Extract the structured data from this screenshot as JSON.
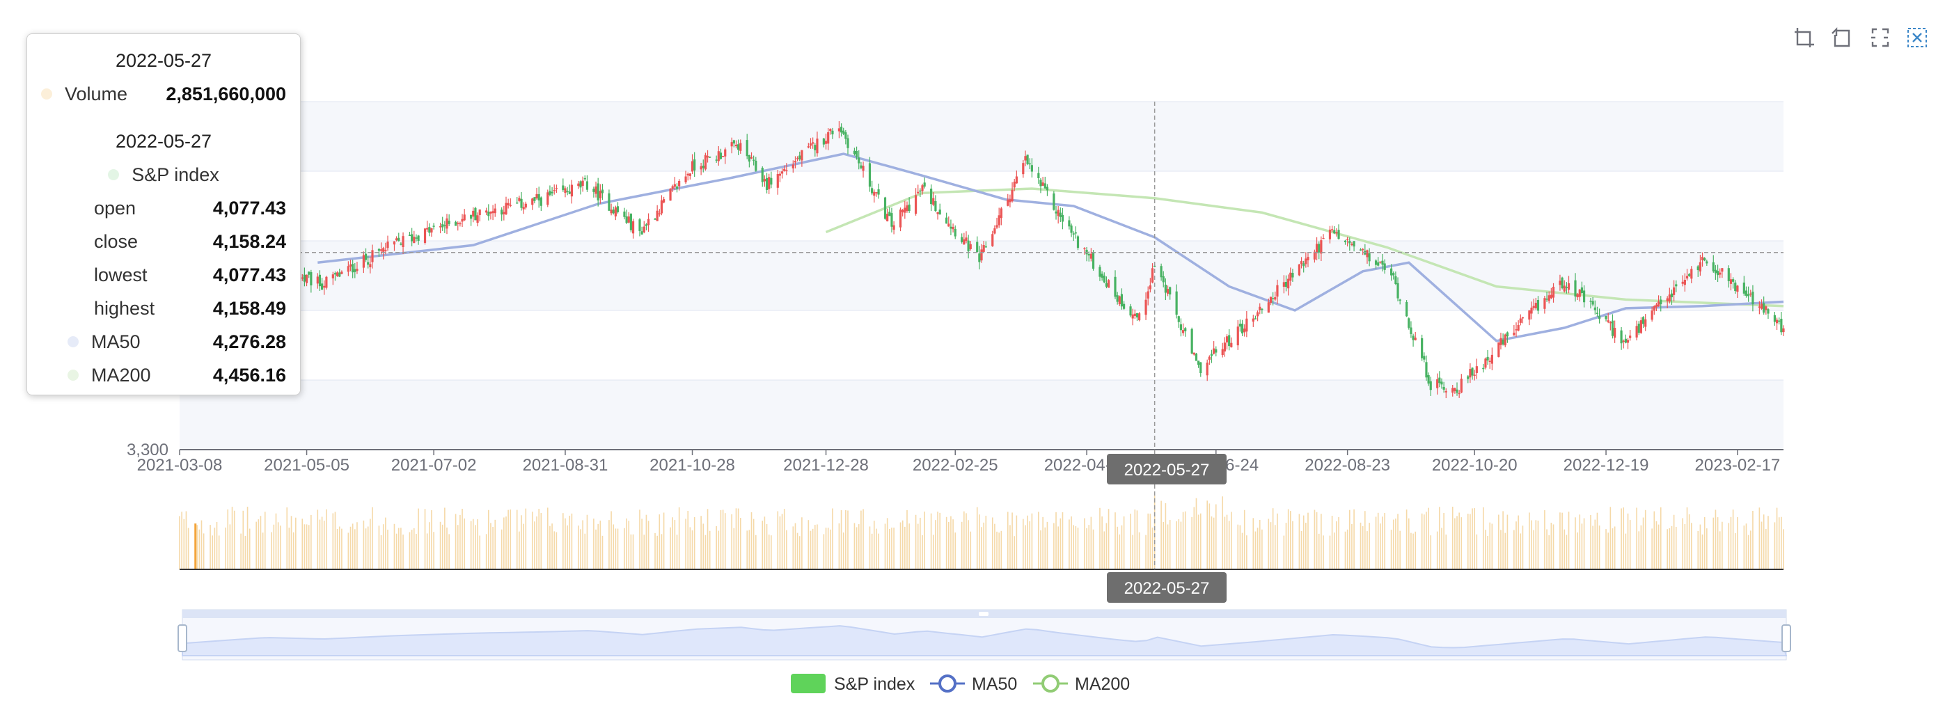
{
  "toolbox": {
    "icons": [
      "zoom-icon",
      "zoom-reset-icon",
      "restore-icon",
      "save-image-icon"
    ]
  },
  "tooltip": {
    "volume_date": "2022-05-27",
    "volume_label": "Volume",
    "volume_value": "2,851,660,000",
    "price_date": "2022-05-27",
    "series_label": "S&P index",
    "rows": [
      {
        "label": "open",
        "value": "4,077.43"
      },
      {
        "label": "close",
        "value": "4,158.24"
      },
      {
        "label": "lowest",
        "value": "4,077.43"
      },
      {
        "label": "highest",
        "value": "4,158.49"
      },
      {
        "label": "MA50",
        "value": "4,276.28"
      },
      {
        "label": "MA200",
        "value": "4,456.16"
      }
    ]
  },
  "axis_pointer": {
    "price_label": "2022-05-27",
    "volume_label": "2022-05-27"
  },
  "legend": {
    "items": [
      {
        "label": "S&P index"
      },
      {
        "label": "MA50"
      },
      {
        "label": "MA200"
      }
    ]
  },
  "colors": {
    "up": "#47b262",
    "down": "#eb5454",
    "ma50": "#9fb0e0",
    "ma200": "#c4e6b4",
    "volume": "#f5d9a8",
    "volume_highlight": "#f3a43b",
    "band": "#f5f7fb",
    "grid": "#e0e6f1",
    "axis_text": "#6e7079",
    "pointer_label_bg": "#6e6e6e",
    "datazoom_fill": "#dfe7fb",
    "datazoom_line": "#c5d3f4",
    "legend_kline": "#5fd35a",
    "legend_ma50": "#5470c6",
    "legend_ma200": "#91cc75"
  },
  "chart_data": {
    "type": "candlestick",
    "series": [
      {
        "name": "S&P index",
        "kind": "candlestick"
      },
      {
        "name": "MA50",
        "kind": "line"
      },
      {
        "name": "MA200",
        "kind": "line"
      },
      {
        "name": "Volume",
        "kind": "bar"
      }
    ],
    "x_tick_labels": [
      "2021-03-08",
      "2021-05-05",
      "2021-07-02",
      "2021-08-31",
      "2021-10-28",
      "2021-12-28",
      "2022-02-25",
      "2022-04-26",
      "2022-06-24",
      "2022-08-23",
      "2022-10-20",
      "2022-12-19",
      "2023-02-17"
    ],
    "x_range": [
      "2021-03-08",
      "2023-03-10"
    ],
    "y_tick_labels": [
      "3,300"
    ],
    "y_range": [
      3300,
      4900
    ],
    "highlight_date": "2022-05-27",
    "highlight_values": {
      "open": 4077.43,
      "close": 4158.24,
      "lowest": 4077.43,
      "highest": 4158.49,
      "MA50": 4276.28,
      "MA200": 4456.16,
      "volume": 2851660000
    },
    "close_path": [
      [
        "2021-03-08",
        3820
      ],
      [
        "2021-04-15",
        4140
      ],
      [
        "2021-05-12",
        4060
      ],
      [
        "2021-06-15",
        4250
      ],
      [
        "2021-07-20",
        4380
      ],
      [
        "2021-08-20",
        4450
      ],
      [
        "2021-09-10",
        4520
      ],
      [
        "2021-10-04",
        4300
      ],
      [
        "2021-10-28",
        4600
      ],
      [
        "2021-11-18",
        4700
      ],
      [
        "2021-12-01",
        4520
      ],
      [
        "2022-01-03",
        4790
      ],
      [
        "2022-01-27",
        4330
      ],
      [
        "2022-02-10",
        4500
      ],
      [
        "2022-03-08",
        4170
      ],
      [
        "2022-03-29",
        4630
      ],
      [
        "2022-04-12",
        4400
      ],
      [
        "2022-05-10",
        4000
      ],
      [
        "2022-05-20",
        3900
      ],
      [
        "2022-05-27",
        4158
      ],
      [
        "2022-06-16",
        3670
      ],
      [
        "2022-07-10",
        3900
      ],
      [
        "2022-08-16",
        4300
      ],
      [
        "2022-09-12",
        4110
      ],
      [
        "2022-09-30",
        3600
      ],
      [
        "2022-10-12",
        3580
      ],
      [
        "2022-11-30",
        4080
      ],
      [
        "2022-12-28",
        3790
      ],
      [
        "2023-02-02",
        4180
      ],
      [
        "2023-03-10",
        3860
      ]
    ],
    "ma50_path": [
      [
        "2021-05-10",
        4160
      ],
      [
        "2021-07-20",
        4240
      ],
      [
        "2021-09-15",
        4430
      ],
      [
        "2021-11-15",
        4550
      ],
      [
        "2022-01-05",
        4660
      ],
      [
        "2022-02-10",
        4560
      ],
      [
        "2022-03-20",
        4450
      ],
      [
        "2022-04-20",
        4420
      ],
      [
        "2022-05-27",
        4276
      ],
      [
        "2022-06-30",
        4050
      ],
      [
        "2022-07-30",
        3940
      ],
      [
        "2022-08-30",
        4120
      ],
      [
        "2022-09-20",
        4160
      ],
      [
        "2022-10-30",
        3800
      ],
      [
        "2022-11-30",
        3860
      ],
      [
        "2022-12-28",
        3950
      ],
      [
        "2023-02-01",
        3960
      ],
      [
        "2023-03-10",
        3980
      ]
    ],
    "ma200_path": [
      [
        "2021-12-28",
        4300
      ],
      [
        "2022-02-10",
        4480
      ],
      [
        "2022-04-01",
        4500
      ],
      [
        "2022-05-27",
        4456
      ],
      [
        "2022-07-15",
        4390
      ],
      [
        "2022-09-10",
        4230
      ],
      [
        "2022-10-30",
        4050
      ],
      [
        "2022-12-28",
        3990
      ],
      [
        "2023-03-10",
        3960
      ]
    ]
  }
}
